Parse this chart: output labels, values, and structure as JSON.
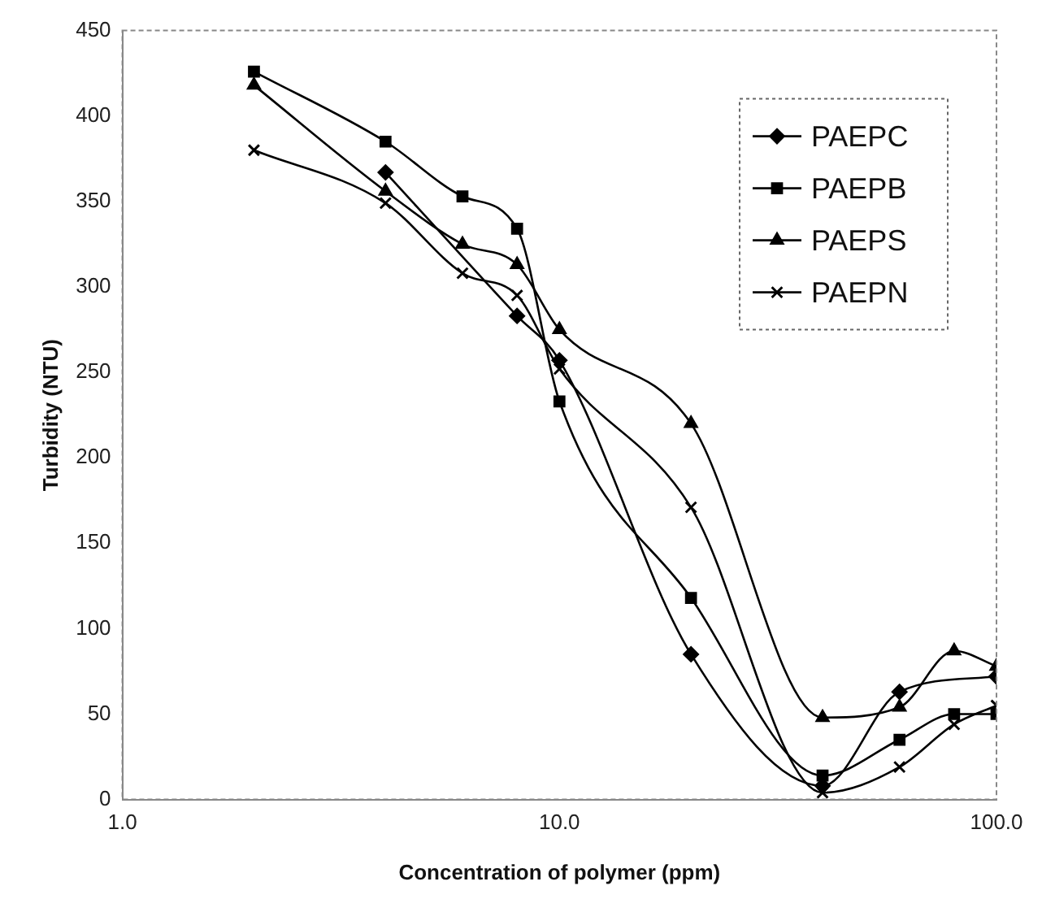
{
  "chart_data": {
    "type": "line",
    "xlabel": "Concentration of polymer (ppm)",
    "ylabel": "Turbidity (NTU)",
    "x": [
      2,
      4,
      6,
      8,
      10,
      20,
      40,
      60,
      80,
      100
    ],
    "series": [
      {
        "name": "PAEPC",
        "color": "#000000",
        "marker": "diamond",
        "values": [
          null,
          367,
          null,
          283,
          257,
          85,
          8,
          63,
          null,
          72
        ]
      },
      {
        "name": "PAEPB",
        "color": "#000000",
        "marker": "square",
        "values": [
          426,
          385,
          353,
          334,
          233,
          118,
          14,
          35,
          50,
          50
        ]
      },
      {
        "name": "PAEPS",
        "color": "#000000",
        "marker": "triangle",
        "values": [
          418,
          356,
          325,
          313,
          275,
          220,
          48,
          54,
          87,
          78
        ]
      },
      {
        "name": "PAEPN",
        "color": "#000000",
        "marker": "cross",
        "values": [
          380,
          349,
          308,
          295,
          252,
          171,
          4,
          19,
          44,
          55
        ]
      }
    ],
    "log": "x",
    "xlim": [
      1,
      100
    ],
    "xticks": [
      {
        "value": 1,
        "label": "1.0"
      },
      {
        "value": 10,
        "label": "10.0"
      },
      {
        "value": 100,
        "label": "100.0"
      }
    ],
    "ylim": [
      0,
      450
    ],
    "yticks": [
      0,
      50,
      100,
      150,
      200,
      250,
      300,
      350,
      400,
      450
    ],
    "legend": "top right",
    "grid": false
  }
}
